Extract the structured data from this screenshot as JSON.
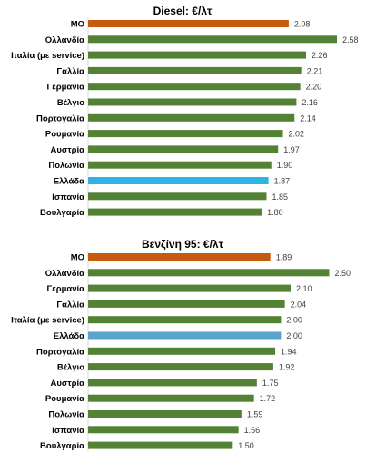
{
  "chart_data": [
    {
      "type": "bar",
      "orientation": "horizontal",
      "title": "Diesel: €/λτ",
      "categories": [
        "ΜΟ",
        "Ολλανδία",
        "Ιταλία (με service)",
        "Γαλλία",
        "Γερμανία",
        "Βέλγιο",
        "Πορτογαλία",
        "Ρουμανία",
        "Αυστρία",
        "Πολωνία",
        "Ελλάδα",
        "Ισπανία",
        "Βουλγαρία"
      ],
      "values": [
        2.08,
        2.58,
        2.26,
        2.21,
        2.2,
        2.16,
        2.14,
        2.02,
        1.97,
        1.9,
        1.87,
        1.85,
        1.8
      ],
      "value_labels": [
        "2.08",
        "2.58",
        "2.26",
        "2.21",
        "2.20",
        "2.16",
        "2.14",
        "2.02",
        "1.97",
        "1.90",
        "1.87",
        "1.85",
        "1.80"
      ],
      "bar_colors": [
        "#C55A11",
        "#548235",
        "#548235",
        "#548235",
        "#548235",
        "#548235",
        "#548235",
        "#548235",
        "#548235",
        "#548235",
        "#2DB3E6",
        "#548235",
        "#548235"
      ],
      "xlim": [
        0,
        2.7
      ],
      "grid": false,
      "legend": "none"
    },
    {
      "type": "bar",
      "orientation": "horizontal",
      "title": "Βενζίνη 95: €/λτ",
      "categories": [
        "ΜΟ",
        "Ολλανδία",
        "Γερμανία",
        "Γαλλία",
        "Ιταλία (με service)",
        "Ελλάδα",
        "Πορτογαλία",
        "Βέλγιο",
        "Αυστρία",
        "Ρουμανία",
        "Πολωνία",
        "Ισπανία",
        "Βουλγαρία"
      ],
      "values": [
        1.89,
        2.5,
        2.1,
        2.04,
        2.0,
        2.0,
        1.94,
        1.92,
        1.75,
        1.72,
        1.59,
        1.56,
        1.5
      ],
      "value_labels": [
        "1.89",
        "2.50",
        "2.10",
        "2.04",
        "2.00",
        "2.00",
        "1.94",
        "1.92",
        "1.75",
        "1.72",
        "1.59",
        "1.56",
        "1.50"
      ],
      "bar_colors": [
        "#C55A11",
        "#548235",
        "#548235",
        "#548235",
        "#548235",
        "#5BA3CF",
        "#548235",
        "#548235",
        "#548235",
        "#548235",
        "#548235",
        "#548235",
        "#548235"
      ],
      "xlim": [
        0,
        2.7
      ],
      "grid": false,
      "legend": "none"
    }
  ],
  "colors": {
    "average": "#C55A11",
    "country": "#548235",
    "greece_diesel": "#2DB3E6",
    "greece_petrol": "#5BA3CF",
    "label_text": "#000000",
    "value_text": "#404040",
    "axis_line": "#D9D9D9"
  }
}
